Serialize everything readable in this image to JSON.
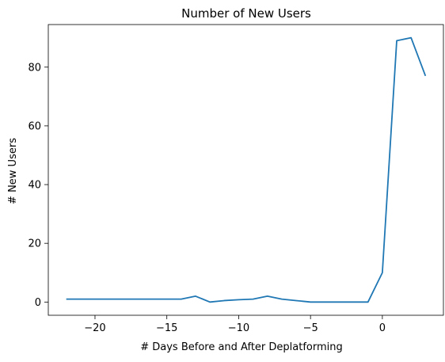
{
  "chart_data": {
    "type": "line",
    "title": "Number of New Users",
    "xlabel": "# Days Before and After Deplatforming",
    "ylabel": "# New Users",
    "xlim": [
      -23.25,
      4.25
    ],
    "ylim": [
      -4.5,
      94.5
    ],
    "xticks": [
      -20,
      -15,
      -10,
      -5,
      0
    ],
    "yticks": [
      0,
      20,
      40,
      60,
      80
    ],
    "grid": false,
    "legend": "none",
    "series": [
      {
        "color": "#1f77b4",
        "x": [
          -22,
          -21,
          -20,
          -19,
          -18,
          -17,
          -16,
          -15,
          -14,
          -13,
          -12,
          -11,
          -10,
          -9,
          -8,
          -7,
          -6,
          -5,
          -4,
          -3,
          -2,
          -1,
          0,
          1,
          2,
          3
        ],
        "y": [
          1,
          1,
          1,
          1,
          1,
          1,
          1,
          1,
          1,
          2,
          0,
          0.5,
          0.8,
          1,
          2,
          1,
          0.5,
          0,
          0,
          0,
          0,
          0,
          10,
          89,
          90,
          77
        ]
      }
    ]
  }
}
